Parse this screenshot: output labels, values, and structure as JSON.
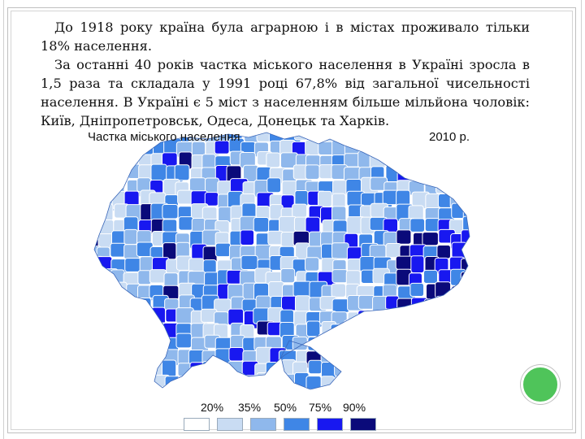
{
  "paragraphs": [
    "До 1918 року країна була аграрною і в містах проживало тільки 18% населення.",
    "За останні 40 років частка міського населення в Україні зросла в 1,5 раза та складала у 1991 році 67,8% від загальної чисельності населення. В Україні є 5 міст з населенням більше мільйона чоловік: Київ, Дніпропетровськ, Одеса, Донецьк та Харків."
  ],
  "map": {
    "title": "Частка міського населення",
    "year": "2010 р."
  },
  "legend": {
    "labels": [
      "20%",
      "35%",
      "50%",
      "75%",
      "90%"
    ],
    "colors": [
      "#ffffff",
      "#c9dcf3",
      "#8fb8ec",
      "#3f86e6",
      "#1818f0",
      "#0a0a7a"
    ]
  },
  "colors": {
    "accent_dot": "#4fc45a",
    "map_base": "#6fa3ea",
    "map_outline": "#ffffff"
  }
}
